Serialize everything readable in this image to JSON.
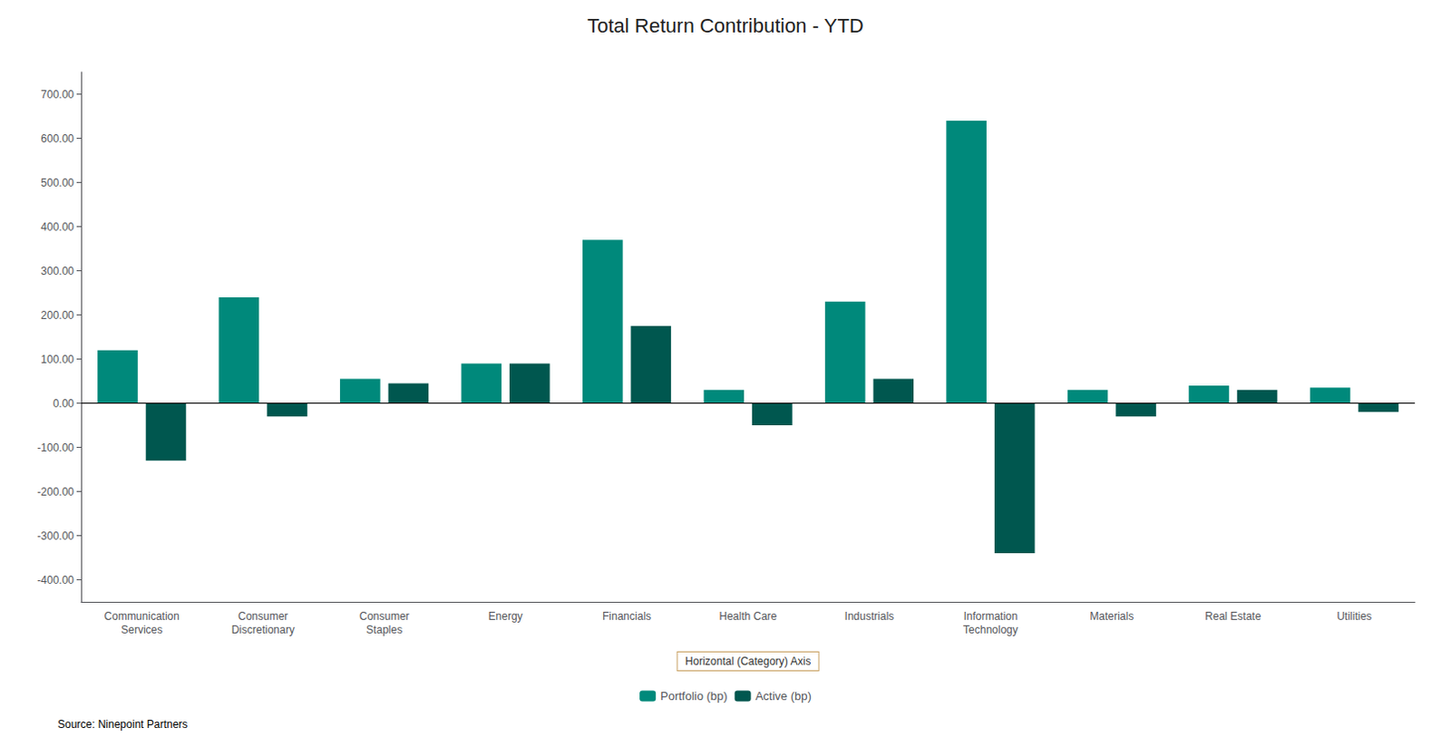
{
  "chart_data": {
    "type": "bar",
    "title": "Total Return Contribution - YTD",
    "xlabel": "Horizontal (Category) Axis",
    "categories": [
      "Communication\nServices",
      "Consumer\nDiscretionary",
      "Consumer\nStaples",
      "Energy",
      "Financials",
      "Health Care",
      "Industrials",
      "Information\nTechnology",
      "Materials",
      "Real Estate",
      "Utilities"
    ],
    "series": [
      {
        "name": "Portfolio (bp)",
        "color": "#00897B",
        "values": [
          120,
          240,
          55,
          90,
          370,
          30,
          230,
          640,
          30,
          40,
          35
        ]
      },
      {
        "name": "Active (bp)",
        "color": "#00574f",
        "values": [
          -130,
          -30,
          45,
          90,
          175,
          -50,
          55,
          -340,
          -30,
          30,
          -20
        ]
      }
    ],
    "ylim": [
      -450,
      750
    ],
    "yticks": [
      {
        "value": -400,
        "label": "-400.00"
      },
      {
        "value": -300,
        "label": "-300.00"
      },
      {
        "value": -200,
        "label": "-200.00"
      },
      {
        "value": -100,
        "label": "-100.00"
      },
      {
        "value": 0,
        "label": "0.00"
      },
      {
        "value": 100,
        "label": "100.00"
      },
      {
        "value": 200,
        "label": "200.00"
      },
      {
        "value": 300,
        "label": "300.00"
      },
      {
        "value": 400,
        "label": "400.00"
      },
      {
        "value": 500,
        "label": "500.00"
      },
      {
        "value": 600,
        "label": "600.00"
      },
      {
        "value": 700,
        "label": "700.00"
      }
    ],
    "grid": false,
    "legend": "bottom",
    "annotations": [
      "Source: Ninepoint Partners"
    ]
  }
}
